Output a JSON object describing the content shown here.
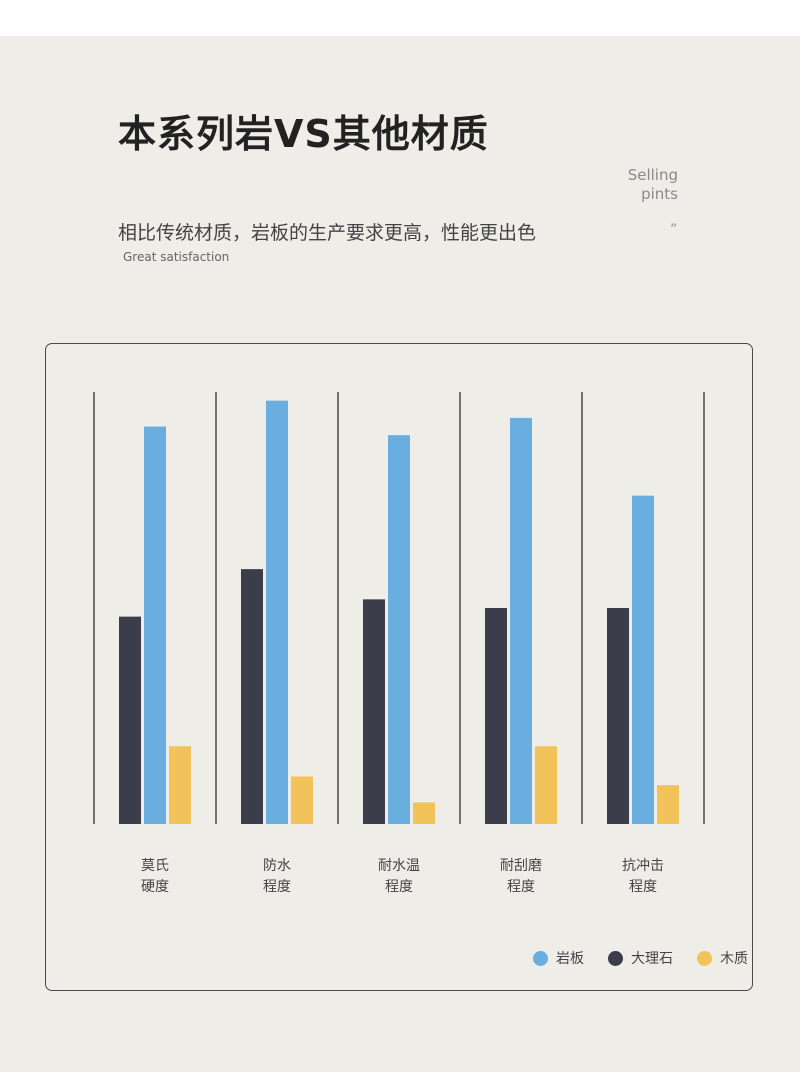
{
  "header": {
    "title": "本系列岩VS其他材质",
    "subtitle": "相比传统材质，岩板的生产要求更高，性能更出色",
    "subtitle_en": "Great satisfaction",
    "selling_line1": "Selling",
    "selling_line2": "pints",
    "quote_mark": "”"
  },
  "colors": {
    "background": "#eeede8",
    "rock_slab": "#6aaee0",
    "marble": "#3b3e4a",
    "wood": "#f2c35a"
  },
  "chart_data": {
    "type": "bar",
    "categories": [
      "莫氏硬度",
      "防水程度",
      "耐水温程度",
      "耐刮磨程度",
      "抗冲击程度"
    ],
    "category_lines": [
      [
        "莫氏",
        "硬度"
      ],
      [
        "防水",
        "程度"
      ],
      [
        "耐水温",
        "程度"
      ],
      [
        "耐刮磨",
        "程度"
      ],
      [
        "抗冲击",
        "程度"
      ]
    ],
    "series": [
      {
        "name": "大理石",
        "color": "#3b3e4a",
        "values": [
          48,
          59,
          52,
          50,
          50
        ]
      },
      {
        "name": "岩板",
        "color": "#6aaee0",
        "values": [
          92,
          98,
          90,
          94,
          76
        ]
      },
      {
        "name": "木质",
        "color": "#f2c35a",
        "values": [
          18,
          11,
          5,
          18,
          9
        ]
      }
    ],
    "legend_order": [
      "岩板",
      "大理石",
      "木质"
    ],
    "ylim": [
      0,
      100
    ],
    "grid": "vertical separators",
    "legend_position": "bottom-right",
    "title": "",
    "xlabel": "",
    "ylabel": ""
  }
}
